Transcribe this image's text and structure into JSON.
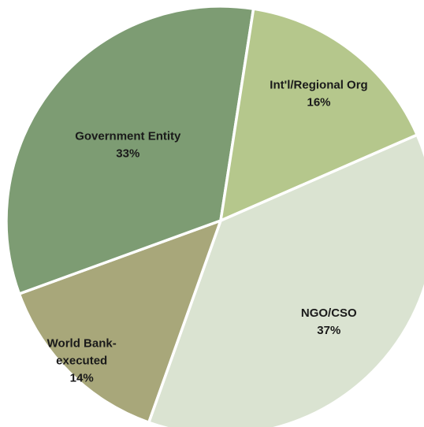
{
  "chart_data": {
    "type": "pie",
    "title": "",
    "slices": [
      {
        "label": "NGO/CSO",
        "value": 37,
        "value_label": "37%",
        "color": "#dae3d1"
      },
      {
        "label": "World Bank-executed",
        "value": 14,
        "value_label": "14%",
        "color": "#a8a77a"
      },
      {
        "label": "Government Entity",
        "value": 33,
        "value_label": "33%",
        "color": "#7d9c73"
      },
      {
        "label": "Int'l/Regional Org",
        "value": 16,
        "value_label": "16%",
        "color": "#b5c78c"
      }
    ],
    "separator_color": "#ffffff"
  }
}
